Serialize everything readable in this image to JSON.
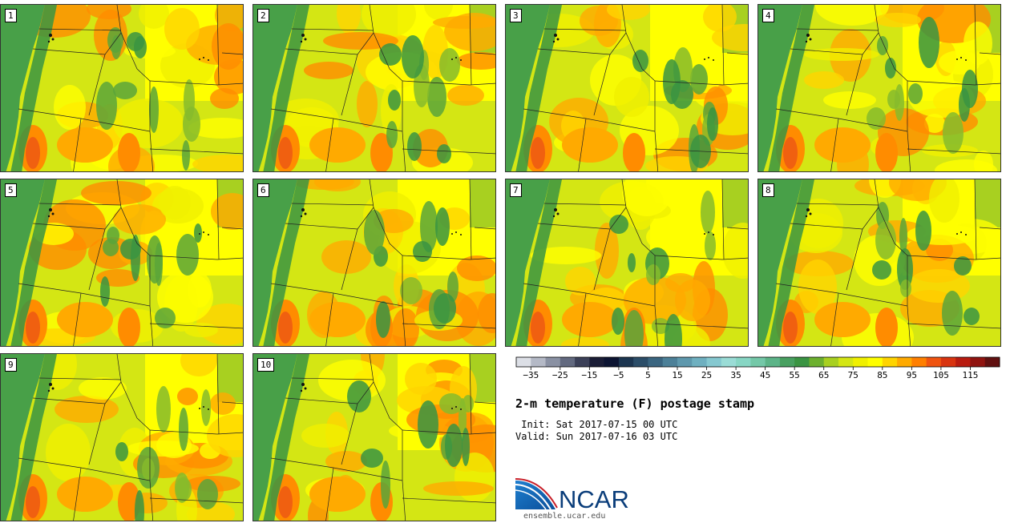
{
  "stamps": [
    "1",
    "2",
    "3",
    "4",
    "5",
    "6",
    "7",
    "8",
    "9",
    "10"
  ],
  "colorbar": {
    "tick_labels": [
      "−35",
      "−25",
      "−15",
      "−5",
      "5",
      "15",
      "25",
      "35",
      "45",
      "55",
      "65",
      "75",
      "85",
      "95",
      "105",
      "115"
    ],
    "colors": [
      "#dcdfe6",
      "#b4b9c6",
      "#8a91a3",
      "#62697f",
      "#3b4058",
      "#1a1d36",
      "#0c1432",
      "#1c3550",
      "#2b4d68",
      "#3a6580",
      "#4c8098",
      "#5e98ad",
      "#6fb0c0",
      "#85c8d0",
      "#9adcd6",
      "#87d6c4",
      "#74c8a8",
      "#5cb488",
      "#48a060",
      "#3a9442",
      "#6cb02e",
      "#a8d020",
      "#d4e614",
      "#f0f000",
      "#ffff00",
      "#ffd400",
      "#ffaa00",
      "#ff7f00",
      "#f05410",
      "#d83410",
      "#b81c10",
      "#901410",
      "#601010"
    ],
    "range": [
      -40,
      125
    ]
  },
  "title": "2-m temperature (F) postage stamp",
  "init_line": " Init: Sat 2017-07-15 00 UTC",
  "valid_line": "Valid: Sun 2017-07-16 03 UTC",
  "logo_text": "NCAR",
  "url": "ensemble.ucar.edu"
}
